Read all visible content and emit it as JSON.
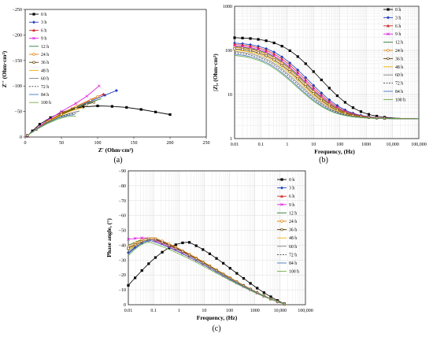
{
  "chart_data": [
    {
      "type": "line",
      "panel_label": "(a)",
      "xlabel": "Z' (Ohm·cm²)",
      "ylabel": "Z'' (Ohm·cm²)",
      "xlim": [
        0,
        250
      ],
      "ylim": [
        0,
        -250
      ],
      "xticks": [
        "0",
        "50",
        "100",
        "150",
        "200",
        "250"
      ],
      "yticks": [
        "0",
        "−50",
        "−100",
        "−150",
        "−200",
        "−250"
      ],
      "grid": false,
      "legend_position": "top-left",
      "series": [
        {
          "name": "0 h",
          "color": "#000000",
          "marker": "square",
          "dash": "solid",
          "points": [
            [
              3,
              -2
            ],
            [
              10,
              -12
            ],
            [
              20,
              -25
            ],
            [
              35,
              -38
            ],
            [
              50,
              -48
            ],
            [
              65,
              -55
            ],
            [
              80,
              -59
            ],
            [
              100,
              -61
            ],
            [
              120,
              -60
            ],
            [
              140,
              -58
            ],
            [
              160,
              -54
            ],
            [
              180,
              -49
            ],
            [
              200,
              -44
            ]
          ]
        },
        {
          "name": "3 h",
          "color": "#1f3fbf",
          "marker": "diamond",
          "dash": "solid",
          "points": [
            [
              3,
              -3
            ],
            [
              15,
              -15
            ],
            [
              30,
              -30
            ],
            [
              50,
              -45
            ],
            [
              70,
              -58
            ],
            [
              90,
              -70
            ],
            [
              110,
              -82
            ],
            [
              126,
              -91
            ]
          ]
        },
        {
          "name": "6 h",
          "color": "#d62728",
          "marker": "triangle",
          "dash": "solid",
          "points": [
            [
              3,
              -3
            ],
            [
              15,
              -15
            ],
            [
              30,
              -30
            ],
            [
              50,
              -46
            ],
            [
              70,
              -60
            ],
            [
              90,
              -73
            ],
            [
              108,
              -84
            ]
          ]
        },
        {
          "name": "9 h",
          "color": "#e020e0",
          "marker": "x",
          "dash": "solid",
          "points": [
            [
              3,
              -3
            ],
            [
              15,
              -16
            ],
            [
              30,
              -32
            ],
            [
              50,
              -50
            ],
            [
              70,
              -66
            ],
            [
              85,
              -80
            ],
            [
              102,
              -100
            ]
          ]
        },
        {
          "name": "12 h",
          "color": "#2e7d32",
          "marker": "none",
          "dash": "solid",
          "points": [
            [
              3,
              -3
            ],
            [
              15,
              -15
            ],
            [
              30,
              -30
            ],
            [
              50,
              -45
            ],
            [
              70,
              -58
            ],
            [
              90,
              -68
            ],
            [
              105,
              -75
            ]
          ]
        },
        {
          "name": "24 h",
          "color": "#e07b00",
          "marker": "circle",
          "dash": "solid",
          "points": [
            [
              3,
              -3
            ],
            [
              15,
              -15
            ],
            [
              30,
              -30
            ],
            [
              50,
              -46
            ],
            [
              70,
              -60
            ],
            [
              90,
              -72
            ],
            [
              100,
              -79
            ]
          ]
        },
        {
          "name": "36 h",
          "color": "#5a3a00",
          "marker": "circle",
          "dash": "solid",
          "points": [
            [
              3,
              -3
            ],
            [
              15,
              -15
            ],
            [
              30,
              -29
            ],
            [
              50,
              -44
            ],
            [
              70,
              -56
            ],
            [
              85,
              -64
            ],
            [
              95,
              -68
            ]
          ]
        },
        {
          "name": "48 h",
          "color": "#f0b000",
          "marker": "none",
          "dash": "solid",
          "points": [
            [
              3,
              -3
            ],
            [
              15,
              -15
            ],
            [
              30,
              -29
            ],
            [
              50,
              -43
            ],
            [
              65,
              -52
            ],
            [
              80,
              -58
            ]
          ]
        },
        {
          "name": "60 h",
          "color": "#7f7f7f",
          "marker": "none",
          "dash": "solid",
          "points": [
            [
              3,
              -3
            ],
            [
              15,
              -15
            ],
            [
              30,
              -28
            ],
            [
              50,
              -41
            ],
            [
              65,
              -48
            ],
            [
              75,
              -51
            ]
          ]
        },
        {
          "name": "72 h",
          "color": "#404040",
          "marker": "none",
          "dash": "dashed",
          "points": [
            [
              3,
              -3
            ],
            [
              15,
              -15
            ],
            [
              30,
              -28
            ],
            [
              50,
              -40
            ],
            [
              62,
              -45
            ],
            [
              72,
              -47
            ]
          ]
        },
        {
          "name": "84 h",
          "color": "#4472c4",
          "marker": "none",
          "dash": "solid",
          "points": [
            [
              3,
              -3
            ],
            [
              15,
              -15
            ],
            [
              30,
              -27
            ],
            [
              45,
              -37
            ],
            [
              58,
              -42
            ],
            [
              68,
              -44
            ]
          ]
        },
        {
          "name": "100 h",
          "color": "#70ad47",
          "marker": "none",
          "dash": "solid",
          "points": [
            [
              3,
              -3
            ],
            [
              15,
              -14
            ],
            [
              30,
              -26
            ],
            [
              45,
              -35
            ],
            [
              58,
              -40
            ],
            [
              70,
              -41
            ]
          ]
        }
      ]
    },
    {
      "type": "line",
      "panel_label": "(b)",
      "xlabel": "Frequency, (Hz)",
      "ylabel": "|Z|, (Ohm·cm²)",
      "x_scale": "log",
      "y_scale": "log",
      "xlim": [
        0.01,
        100000
      ],
      "ylim": [
        1,
        1000
      ],
      "xticks": [
        "0.01",
        "0.1",
        "1",
        "10",
        "100",
        "1000",
        "10,000",
        "100,000"
      ],
      "yticks": [
        "1",
        "10",
        "100",
        "1000"
      ],
      "grid": true,
      "legend_position": "top-right",
      "series": [
        {
          "name": "0 h",
          "color": "#000000",
          "marker": "square",
          "dash": "solid",
          "params": {
            "r0": 2.8,
            "rp": 195,
            "fc": 1.2,
            "n": 0.8
          }
        },
        {
          "name": "3 h",
          "color": "#1f3fbf",
          "marker": "diamond",
          "dash": "solid",
          "params": {
            "r0": 2.8,
            "rp": 150,
            "fc": 0.5,
            "n": 0.78
          }
        },
        {
          "name": "6 h",
          "color": "#d62728",
          "marker": "triangle",
          "dash": "solid",
          "params": {
            "r0": 2.8,
            "rp": 140,
            "fc": 0.45,
            "n": 0.78
          }
        },
        {
          "name": "9 h",
          "color": "#e020e0",
          "marker": "x",
          "dash": "solid",
          "params": {
            "r0": 2.8,
            "rp": 130,
            "fc": 0.42,
            "n": 0.78
          }
        },
        {
          "name": "12 h",
          "color": "#2e7d32",
          "marker": "none",
          "dash": "solid",
          "params": {
            "r0": 2.8,
            "rp": 125,
            "fc": 0.4,
            "n": 0.78
          }
        },
        {
          "name": "24 h",
          "color": "#e07b00",
          "marker": "circle",
          "dash": "solid",
          "params": {
            "r0": 2.8,
            "rp": 120,
            "fc": 0.38,
            "n": 0.78
          }
        },
        {
          "name": "36 h",
          "color": "#5a3a00",
          "marker": "circle",
          "dash": "solid",
          "params": {
            "r0": 2.8,
            "rp": 112,
            "fc": 0.35,
            "n": 0.78
          }
        },
        {
          "name": "48 h",
          "color": "#f0b000",
          "marker": "none",
          "dash": "solid",
          "params": {
            "r0": 2.8,
            "rp": 105,
            "fc": 0.33,
            "n": 0.78
          }
        },
        {
          "name": "60 h",
          "color": "#7f7f7f",
          "marker": "none",
          "dash": "solid",
          "params": {
            "r0": 2.8,
            "rp": 98,
            "fc": 0.3,
            "n": 0.78
          }
        },
        {
          "name": "72 h",
          "color": "#404040",
          "marker": "none",
          "dash": "dashed",
          "params": {
            "r0": 2.8,
            "rp": 92,
            "fc": 0.28,
            "n": 0.78
          }
        },
        {
          "name": "84 h",
          "color": "#4472c4",
          "marker": "none",
          "dash": "solid",
          "params": {
            "r0": 2.8,
            "rp": 85,
            "fc": 0.26,
            "n": 0.78
          }
        },
        {
          "name": "100 h",
          "color": "#70ad47",
          "marker": "none",
          "dash": "solid",
          "params": {
            "r0": 2.8,
            "rp": 80,
            "fc": 0.25,
            "n": 0.78
          }
        }
      ]
    },
    {
      "type": "line",
      "panel_label": "(c)",
      "xlabel": "Frequency, (Hz)",
      "ylabel": "Phase angle, (°)",
      "x_scale": "log",
      "xlim": [
        0.01,
        100000
      ],
      "ylim": [
        0,
        -90
      ],
      "xticks": [
        "0.01",
        "0.1",
        "1",
        "10",
        "100",
        "1000",
        "10,000",
        "100,000"
      ],
      "yticks": [
        "0",
        "−10",
        "−20",
        "−30",
        "−40",
        "−50",
        "−60",
        "−70",
        "−80",
        "−90"
      ],
      "grid": true,
      "legend_position": "top-right",
      "series": [
        {
          "name": "0 h",
          "color": "#000000",
          "marker": "square",
          "dash": "solid",
          "params": {
            "start": -13,
            "peak": -42,
            "peakf": 2.5,
            "end": 18000
          }
        },
        {
          "name": "3 h",
          "color": "#1f3fbf",
          "marker": "diamond",
          "dash": "solid",
          "params": {
            "start": -35,
            "peak": -44,
            "peakf": 0.12,
            "end": 18000
          }
        },
        {
          "name": "6 h",
          "color": "#d62728",
          "marker": "triangle",
          "dash": "solid",
          "params": {
            "start": -38,
            "peak": -44,
            "peakf": 0.11,
            "end": 18000
          }
        },
        {
          "name": "9 h",
          "color": "#e020e0",
          "marker": "x",
          "dash": "solid",
          "params": {
            "start": -44,
            "peak": -45,
            "peakf": 0.05,
            "end": 18000
          }
        },
        {
          "name": "12 h",
          "color": "#2e7d32",
          "marker": "none",
          "dash": "solid",
          "params": {
            "start": -40,
            "peak": -45,
            "peakf": 0.1,
            "end": 18000
          }
        },
        {
          "name": "24 h",
          "color": "#e07b00",
          "marker": "circle",
          "dash": "solid",
          "params": {
            "start": -39,
            "peak": -45,
            "peakf": 0.1,
            "end": 18000
          }
        },
        {
          "name": "36 h",
          "color": "#5a3a00",
          "marker": "circle",
          "dash": "solid",
          "params": {
            "start": -38,
            "peak": -44,
            "peakf": 0.1,
            "end": 18000
          }
        },
        {
          "name": "48 h",
          "color": "#f0b000",
          "marker": "none",
          "dash": "solid",
          "params": {
            "start": -37,
            "peak": -44,
            "peakf": 0.09,
            "end": 18000
          }
        },
        {
          "name": "60 h",
          "color": "#7f7f7f",
          "marker": "none",
          "dash": "solid",
          "params": {
            "start": -36,
            "peak": -44,
            "peakf": 0.09,
            "end": 18000
          }
        },
        {
          "name": "72 h",
          "color": "#404040",
          "marker": "none",
          "dash": "dashed",
          "params": {
            "start": -35,
            "peak": -43,
            "peakf": 0.08,
            "end": 18000
          }
        },
        {
          "name": "84 h",
          "color": "#4472c4",
          "marker": "none",
          "dash": "solid",
          "params": {
            "start": -34,
            "peak": -43,
            "peakf": 0.08,
            "end": 18000
          }
        },
        {
          "name": "100 h",
          "color": "#70ad47",
          "marker": "none",
          "dash": "solid",
          "params": {
            "start": -33,
            "peak": -42,
            "peakf": 0.07,
            "end": 18000
          }
        }
      ]
    }
  ]
}
